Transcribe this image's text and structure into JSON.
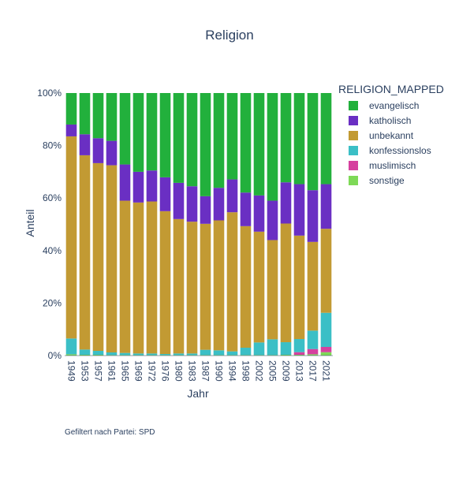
{
  "chart_data": {
    "type": "bar",
    "stacked": true,
    "title": "Religion",
    "xlabel": "Jahr",
    "ylabel": "Anteil",
    "ylim": [
      0,
      1
    ],
    "y_tick_values": [
      0,
      0.2,
      0.4,
      0.6,
      0.8,
      1.0
    ],
    "y_tick_labels": [
      "0%",
      "20%",
      "40%",
      "60%",
      "80%",
      "100%"
    ],
    "grid": false,
    "legend_title": "RELIGION_MAPPED",
    "legend_position": "right",
    "footnote": "Gefiltert nach Partei: SPD",
    "categories": [
      "1949",
      "1953",
      "1957",
      "1961",
      "1965",
      "1969",
      "1972",
      "1976",
      "1980",
      "1983",
      "1987",
      "1990",
      "1994",
      "1998",
      "2002",
      "2005",
      "2009",
      "2013",
      "2017",
      "2021"
    ],
    "series": [
      {
        "name": "sonstige",
        "color": "#7ed957",
        "values": [
          0.005,
          0.003,
          0.003,
          0.002,
          0.002,
          0.002,
          0.002,
          0.002,
          0.002,
          0.002,
          0.002,
          0.002,
          0.002,
          0.002,
          0.002,
          0.002,
          0.003,
          0.003,
          0.005,
          0.013
        ]
      },
      {
        "name": "muslimisch",
        "color": "#d6409f",
        "values": [
          0,
          0,
          0,
          0,
          0,
          0,
          0,
          0,
          0,
          0,
          0,
          0,
          0,
          0,
          0,
          0,
          0,
          0.01,
          0.02,
          0.02
        ]
      },
      {
        "name": "konfessionslos",
        "color": "#3bbfc6",
        "values": [
          0.06,
          0.02,
          0.015,
          0.01,
          0.008,
          0.006,
          0.006,
          0.004,
          0.006,
          0.006,
          0.02,
          0.018,
          0.014,
          0.028,
          0.048,
          0.06,
          0.048,
          0.05,
          0.07,
          0.13
        ]
      },
      {
        "name": "unbekannt",
        "color": "#c29a33",
        "values": [
          0.77,
          0.74,
          0.715,
          0.713,
          0.58,
          0.575,
          0.579,
          0.544,
          0.512,
          0.502,
          0.48,
          0.495,
          0.53,
          0.463,
          0.422,
          0.378,
          0.452,
          0.394,
          0.338,
          0.32
        ]
      },
      {
        "name": "katholisch",
        "color": "#6a2fc3",
        "values": [
          0.045,
          0.08,
          0.095,
          0.093,
          0.138,
          0.117,
          0.118,
          0.129,
          0.138,
          0.135,
          0.105,
          0.124,
          0.125,
          0.128,
          0.138,
          0.15,
          0.157,
          0.196,
          0.197,
          0.17
        ]
      },
      {
        "name": "evangelisch",
        "color": "#22b03c",
        "values": [
          0.12,
          0.157,
          0.172,
          0.182,
          0.272,
          0.3,
          0.295,
          0.321,
          0.342,
          0.355,
          0.393,
          0.361,
          0.329,
          0.379,
          0.39,
          0.41,
          0.34,
          0.347,
          0.37,
          0.347
        ]
      }
    ],
    "legend_order": [
      "evangelisch",
      "katholisch",
      "unbekannt",
      "konfessionslos",
      "muslimisch",
      "sonstige"
    ]
  }
}
